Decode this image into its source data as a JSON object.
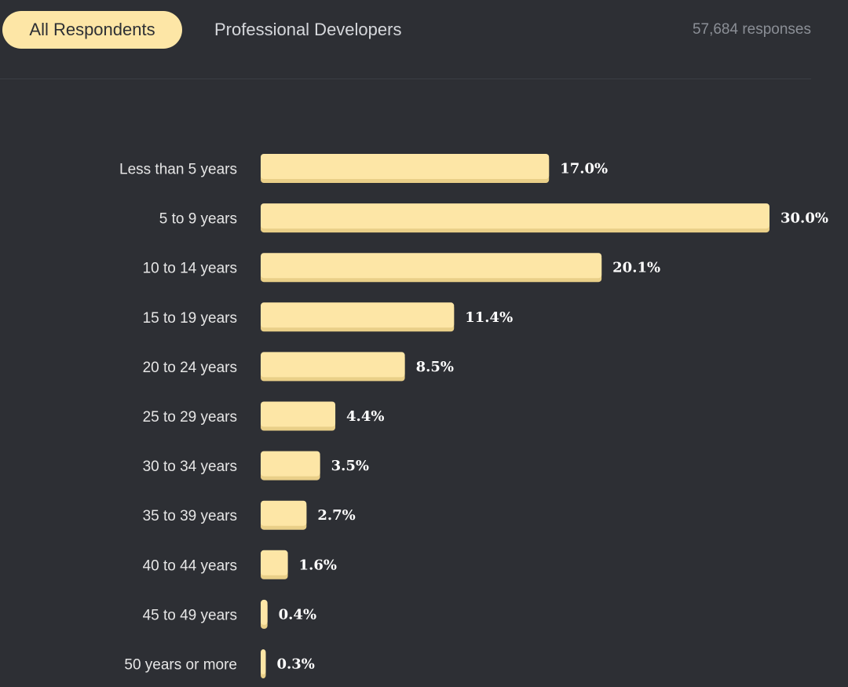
{
  "tabs": {
    "all": "All Respondents",
    "professional": "Professional Developers"
  },
  "responses_label": "57,684 responses",
  "colors": {
    "background": "#2d2f34",
    "bar": "#fde6a6",
    "bar_shadow": "#e9cf88",
    "text": "#e6e6e6"
  },
  "chart_data": {
    "type": "bar",
    "orientation": "horizontal",
    "title": "",
    "xlabel": "",
    "ylabel": "",
    "xlim": [
      0,
      30.0
    ],
    "grid": false,
    "categories": [
      "Less than 5 years",
      "5 to 9 years",
      "10 to 14 years",
      "15 to 19 years",
      "20 to 24 years",
      "25 to 29 years",
      "30 to 34 years",
      "35 to 39 years",
      "40 to 44 years",
      "45 to 49 years",
      "50 years or more"
    ],
    "values": [
      17.0,
      30.0,
      20.1,
      11.4,
      8.5,
      4.4,
      3.5,
      2.7,
      1.6,
      0.4,
      0.3
    ],
    "value_labels": [
      "17.0%",
      "30.0%",
      "20.1%",
      "11.4%",
      "8.5%",
      "4.4%",
      "3.5%",
      "2.7%",
      "1.6%",
      "0.4%",
      "0.3%"
    ]
  }
}
